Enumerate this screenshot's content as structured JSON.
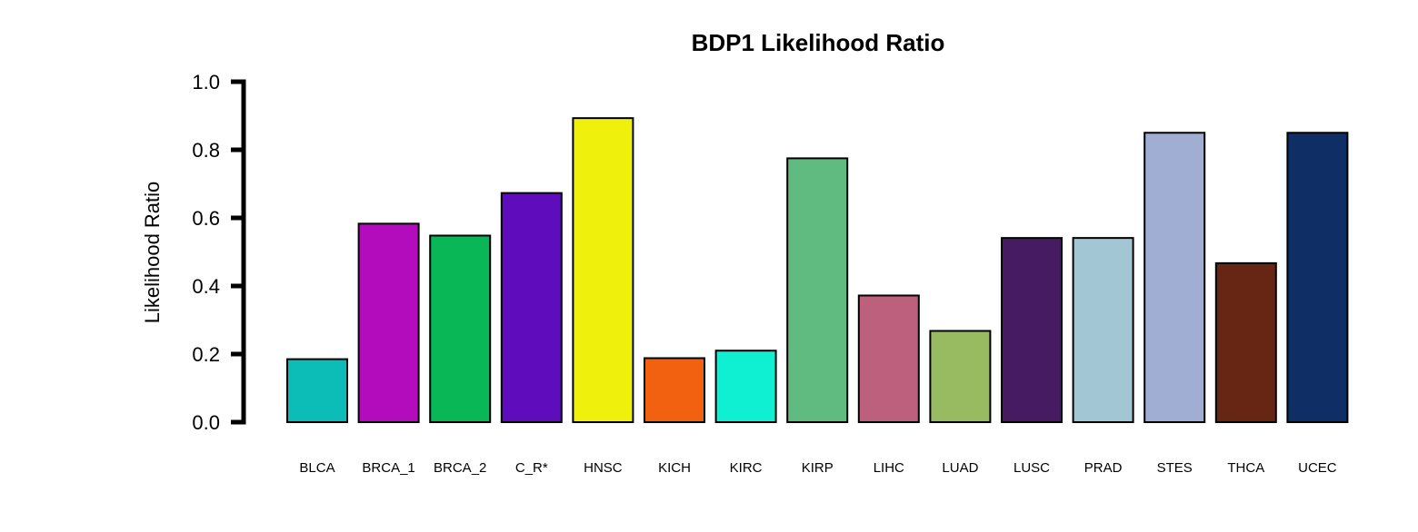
{
  "chart_data": {
    "type": "bar",
    "title": "BDP1 Likelihood Ratio",
    "xlabel": "",
    "ylabel": "Likelihood Ratio",
    "ylim": [
      0,
      1.0
    ],
    "yticks": [
      "0.0",
      "0.2",
      "0.4",
      "0.6",
      "0.8",
      "1.0"
    ],
    "grid": false,
    "legend": "none",
    "categories": [
      "BLCA",
      "BRCA_1",
      "BRCA_2",
      "C_R*",
      "HNSC",
      "KICH",
      "KIRC",
      "KIRP",
      "LIHC",
      "LUAD",
      "LUSC",
      "PRAD",
      "STES",
      "THCA",
      "UCEC"
    ],
    "values": [
      0.185,
      0.583,
      0.548,
      0.673,
      0.893,
      0.188,
      0.21,
      0.775,
      0.372,
      0.268,
      0.541,
      0.541,
      0.85,
      0.467,
      0.85
    ],
    "colors": [
      "#0cbdb7",
      "#b30cbd",
      "#0ab757",
      "#5e0cbc",
      "#eff00c",
      "#f26110",
      "#0ff0d2",
      "#5fbb7f",
      "#bd607e",
      "#98bb62",
      "#461b61",
      "#a2c6d3",
      "#a0aed3",
      "#672614",
      "#0f2e66"
    ]
  }
}
